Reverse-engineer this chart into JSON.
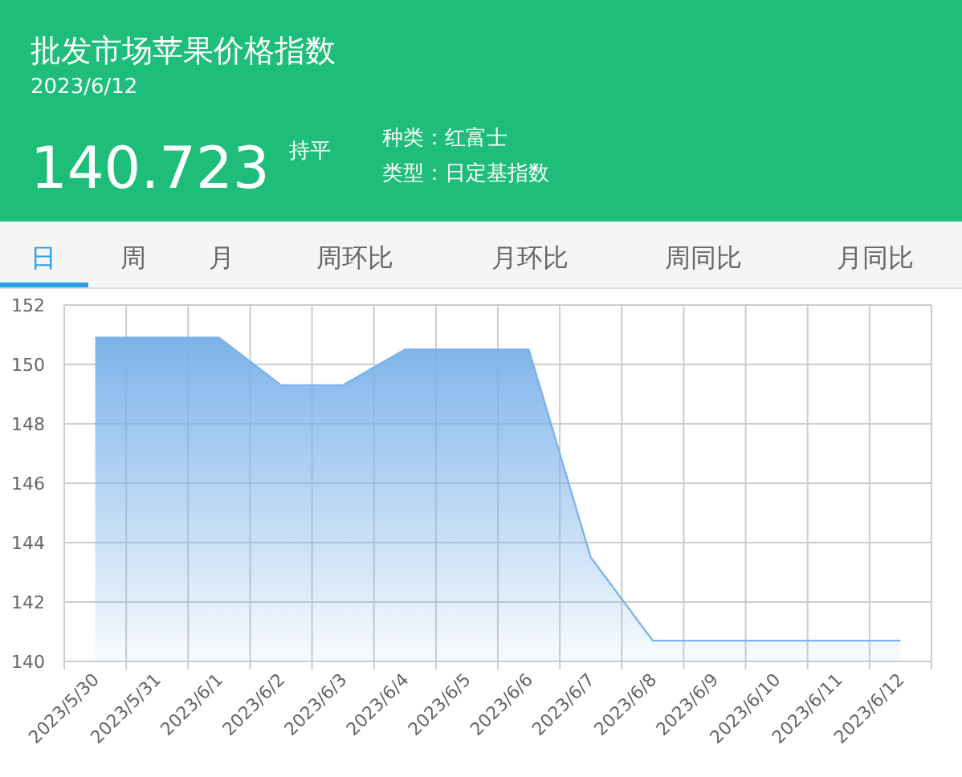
{
  "chart_data": {
    "type": "area",
    "title": "批发市场苹果价格指数",
    "subtitle": "2023/6/12",
    "annotations": [
      "140.723",
      "持平",
      "种类：红富士",
      "类型：日定基指数",
      "日",
      "周",
      "月",
      "周环比",
      "月环比",
      "周同比",
      "月同比"
    ],
    "categories": [
      "2023/5/30",
      "2023/5/31",
      "2023/6/1",
      "2023/6/2",
      "2023/6/3",
      "2023/6/4",
      "2023/6/5",
      "2023/6/6",
      "2023/6/7",
      "2023/6/8",
      "2023/6/9",
      "2023/6/10",
      "2023/6/11",
      "2023/6/12"
    ],
    "values": [
      150.9,
      150.9,
      150.9,
      149.3,
      149.3,
      150.5,
      150.5,
      150.5,
      143.5,
      140.7,
      140.7,
      140.7,
      140.7,
      140.7
    ],
    "color": "#7db3ea",
    "ylim": [
      140,
      152
    ],
    "yticks": [
      140,
      142,
      144,
      146,
      148,
      150,
      152
    ],
    "grid": true
  }
}
